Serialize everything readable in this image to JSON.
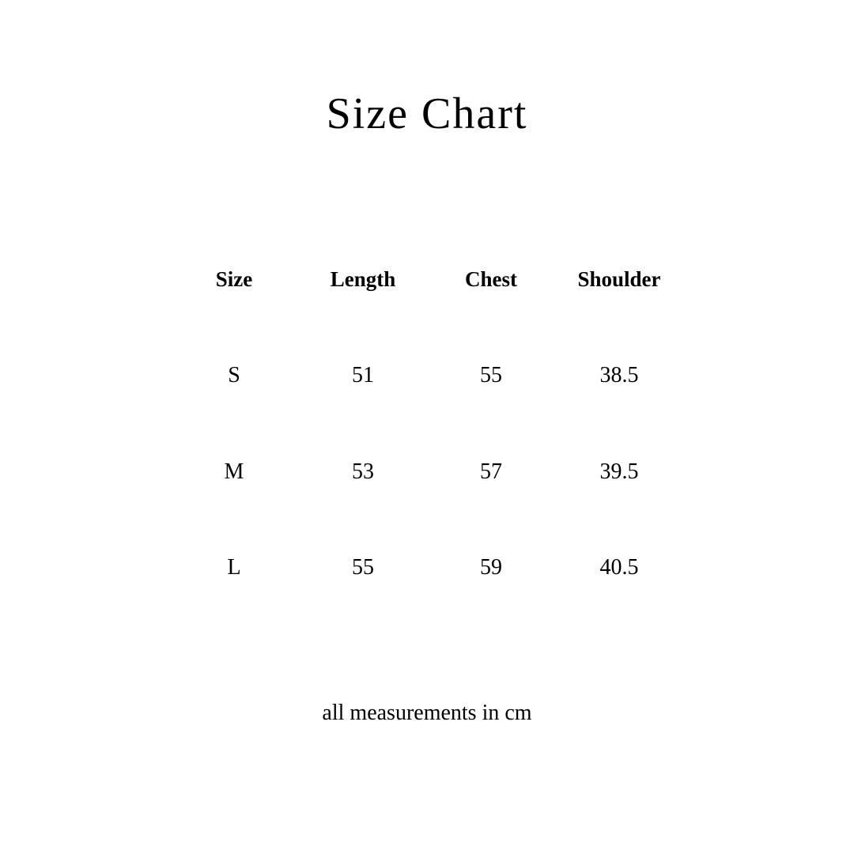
{
  "title": "Size Chart",
  "table": {
    "headers": [
      "Size",
      "Length",
      "Chest",
      "Shoulder"
    ],
    "rows": [
      [
        "S",
        "51",
        "55",
        "38.5"
      ],
      [
        "M",
        "53",
        "57",
        "39.5"
      ],
      [
        "L",
        "55",
        "59",
        "40.5"
      ]
    ]
  },
  "note": "all measurements in cm"
}
